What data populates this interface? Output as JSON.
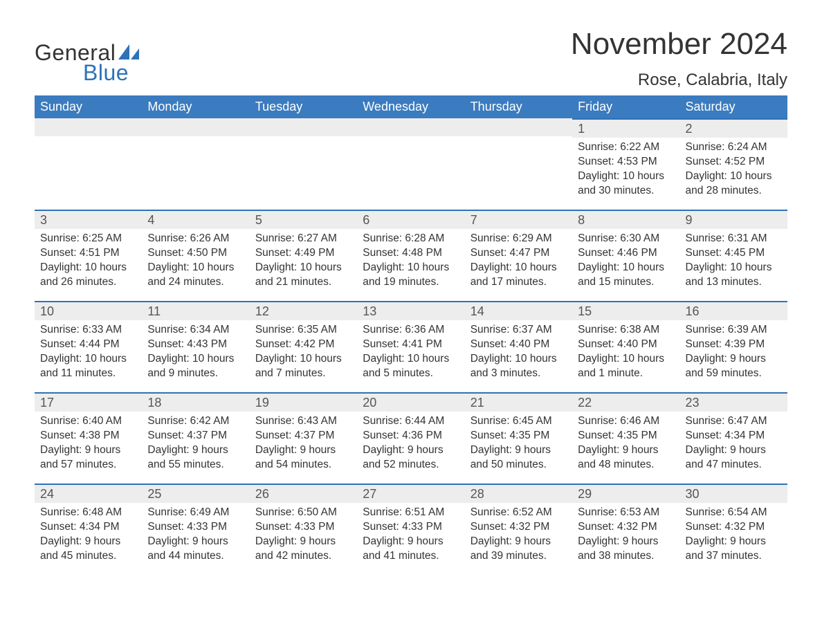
{
  "logo": {
    "word1": "General",
    "word2": "Blue",
    "shape_color": "#2e72b8"
  },
  "title": "November 2024",
  "location": "Rose, Calabria, Italy",
  "header_bg": "#3b7bbf",
  "header_fg": "#ffffff",
  "daynum_bg": "#ededed",
  "daynum_border": "#2e72b8",
  "text_color": "#333333",
  "days_of_week": [
    "Sunday",
    "Monday",
    "Tuesday",
    "Wednesday",
    "Thursday",
    "Friday",
    "Saturday"
  ],
  "weeks": [
    [
      null,
      null,
      null,
      null,
      null,
      {
        "n": "1",
        "sunrise": "Sunrise: 6:22 AM",
        "sunset": "Sunset: 4:53 PM",
        "dl1": "Daylight: 10 hours",
        "dl2": "and 30 minutes."
      },
      {
        "n": "2",
        "sunrise": "Sunrise: 6:24 AM",
        "sunset": "Sunset: 4:52 PM",
        "dl1": "Daylight: 10 hours",
        "dl2": "and 28 minutes."
      }
    ],
    [
      {
        "n": "3",
        "sunrise": "Sunrise: 6:25 AM",
        "sunset": "Sunset: 4:51 PM",
        "dl1": "Daylight: 10 hours",
        "dl2": "and 26 minutes."
      },
      {
        "n": "4",
        "sunrise": "Sunrise: 6:26 AM",
        "sunset": "Sunset: 4:50 PM",
        "dl1": "Daylight: 10 hours",
        "dl2": "and 24 minutes."
      },
      {
        "n": "5",
        "sunrise": "Sunrise: 6:27 AM",
        "sunset": "Sunset: 4:49 PM",
        "dl1": "Daylight: 10 hours",
        "dl2": "and 21 minutes."
      },
      {
        "n": "6",
        "sunrise": "Sunrise: 6:28 AM",
        "sunset": "Sunset: 4:48 PM",
        "dl1": "Daylight: 10 hours",
        "dl2": "and 19 minutes."
      },
      {
        "n": "7",
        "sunrise": "Sunrise: 6:29 AM",
        "sunset": "Sunset: 4:47 PM",
        "dl1": "Daylight: 10 hours",
        "dl2": "and 17 minutes."
      },
      {
        "n": "8",
        "sunrise": "Sunrise: 6:30 AM",
        "sunset": "Sunset: 4:46 PM",
        "dl1": "Daylight: 10 hours",
        "dl2": "and 15 minutes."
      },
      {
        "n": "9",
        "sunrise": "Sunrise: 6:31 AM",
        "sunset": "Sunset: 4:45 PM",
        "dl1": "Daylight: 10 hours",
        "dl2": "and 13 minutes."
      }
    ],
    [
      {
        "n": "10",
        "sunrise": "Sunrise: 6:33 AM",
        "sunset": "Sunset: 4:44 PM",
        "dl1": "Daylight: 10 hours",
        "dl2": "and 11 minutes."
      },
      {
        "n": "11",
        "sunrise": "Sunrise: 6:34 AM",
        "sunset": "Sunset: 4:43 PM",
        "dl1": "Daylight: 10 hours",
        "dl2": "and 9 minutes."
      },
      {
        "n": "12",
        "sunrise": "Sunrise: 6:35 AM",
        "sunset": "Sunset: 4:42 PM",
        "dl1": "Daylight: 10 hours",
        "dl2": "and 7 minutes."
      },
      {
        "n": "13",
        "sunrise": "Sunrise: 6:36 AM",
        "sunset": "Sunset: 4:41 PM",
        "dl1": "Daylight: 10 hours",
        "dl2": "and 5 minutes."
      },
      {
        "n": "14",
        "sunrise": "Sunrise: 6:37 AM",
        "sunset": "Sunset: 4:40 PM",
        "dl1": "Daylight: 10 hours",
        "dl2": "and 3 minutes."
      },
      {
        "n": "15",
        "sunrise": "Sunrise: 6:38 AM",
        "sunset": "Sunset: 4:40 PM",
        "dl1": "Daylight: 10 hours",
        "dl2": "and 1 minute."
      },
      {
        "n": "16",
        "sunrise": "Sunrise: 6:39 AM",
        "sunset": "Sunset: 4:39 PM",
        "dl1": "Daylight: 9 hours",
        "dl2": "and 59 minutes."
      }
    ],
    [
      {
        "n": "17",
        "sunrise": "Sunrise: 6:40 AM",
        "sunset": "Sunset: 4:38 PM",
        "dl1": "Daylight: 9 hours",
        "dl2": "and 57 minutes."
      },
      {
        "n": "18",
        "sunrise": "Sunrise: 6:42 AM",
        "sunset": "Sunset: 4:37 PM",
        "dl1": "Daylight: 9 hours",
        "dl2": "and 55 minutes."
      },
      {
        "n": "19",
        "sunrise": "Sunrise: 6:43 AM",
        "sunset": "Sunset: 4:37 PM",
        "dl1": "Daylight: 9 hours",
        "dl2": "and 54 minutes."
      },
      {
        "n": "20",
        "sunrise": "Sunrise: 6:44 AM",
        "sunset": "Sunset: 4:36 PM",
        "dl1": "Daylight: 9 hours",
        "dl2": "and 52 minutes."
      },
      {
        "n": "21",
        "sunrise": "Sunrise: 6:45 AM",
        "sunset": "Sunset: 4:35 PM",
        "dl1": "Daylight: 9 hours",
        "dl2": "and 50 minutes."
      },
      {
        "n": "22",
        "sunrise": "Sunrise: 6:46 AM",
        "sunset": "Sunset: 4:35 PM",
        "dl1": "Daylight: 9 hours",
        "dl2": "and 48 minutes."
      },
      {
        "n": "23",
        "sunrise": "Sunrise: 6:47 AM",
        "sunset": "Sunset: 4:34 PM",
        "dl1": "Daylight: 9 hours",
        "dl2": "and 47 minutes."
      }
    ],
    [
      {
        "n": "24",
        "sunrise": "Sunrise: 6:48 AM",
        "sunset": "Sunset: 4:34 PM",
        "dl1": "Daylight: 9 hours",
        "dl2": "and 45 minutes."
      },
      {
        "n": "25",
        "sunrise": "Sunrise: 6:49 AM",
        "sunset": "Sunset: 4:33 PM",
        "dl1": "Daylight: 9 hours",
        "dl2": "and 44 minutes."
      },
      {
        "n": "26",
        "sunrise": "Sunrise: 6:50 AM",
        "sunset": "Sunset: 4:33 PM",
        "dl1": "Daylight: 9 hours",
        "dl2": "and 42 minutes."
      },
      {
        "n": "27",
        "sunrise": "Sunrise: 6:51 AM",
        "sunset": "Sunset: 4:33 PM",
        "dl1": "Daylight: 9 hours",
        "dl2": "and 41 minutes."
      },
      {
        "n": "28",
        "sunrise": "Sunrise: 6:52 AM",
        "sunset": "Sunset: 4:32 PM",
        "dl1": "Daylight: 9 hours",
        "dl2": "and 39 minutes."
      },
      {
        "n": "29",
        "sunrise": "Sunrise: 6:53 AM",
        "sunset": "Sunset: 4:32 PM",
        "dl1": "Daylight: 9 hours",
        "dl2": "and 38 minutes."
      },
      {
        "n": "30",
        "sunrise": "Sunrise: 6:54 AM",
        "sunset": "Sunset: 4:32 PM",
        "dl1": "Daylight: 9 hours",
        "dl2": "and 37 minutes."
      }
    ]
  ]
}
